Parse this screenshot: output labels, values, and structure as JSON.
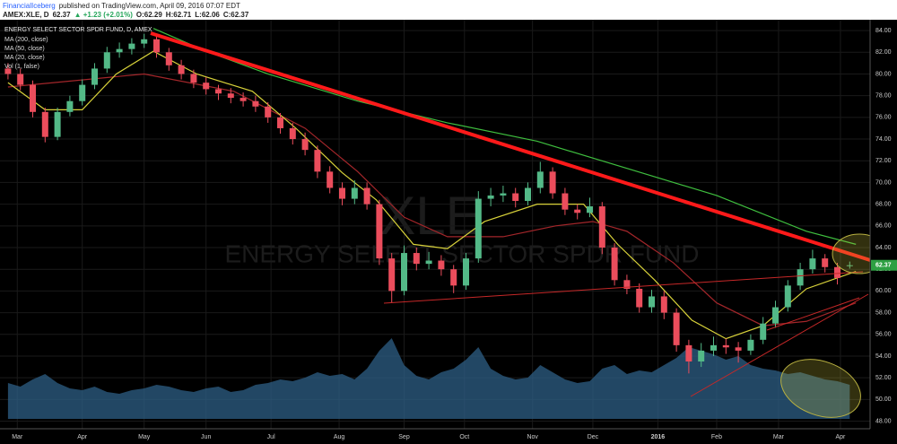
{
  "header": {
    "author": "FinancialIceberg",
    "published": "published on TradingView.com, April 09, 2016 07:07 EDT",
    "symbol": "AMEX:XLE, D",
    "last": "62.37",
    "change": "▲ +1.23 (+2.01%)",
    "open": "O:62.29",
    "high": "H:62.71",
    "low": "L:62.06",
    "close": "C:62.37"
  },
  "watermark": {
    "symbol": "XLE",
    "name": "ENERGY SELECT SECTOR SPDR FUND"
  },
  "chart_data": {
    "type": "candlestick",
    "title": "ENERGY SELECT SECTOR SPDR FUND, D, AMEX",
    "volume_name": "Vol (1, false)",
    "up_color": "#53b987",
    "down_color": "#eb4d5c",
    "volume_color": "#2e5f86",
    "xlim": [
      0,
      280
    ],
    "ylim": [
      47.3,
      85
    ],
    "vlim": [
      0,
      60
    ],
    "grid": true,
    "xticks": [
      {
        "value": 5,
        "label": "Mar"
      },
      {
        "value": 26,
        "label": "Apr"
      },
      {
        "value": 46,
        "label": "May"
      },
      {
        "value": 66,
        "label": "Jun"
      },
      {
        "value": 87,
        "label": "Jul"
      },
      {
        "value": 109,
        "label": "Aug"
      },
      {
        "value": 130,
        "label": "Sep"
      },
      {
        "value": 149.5,
        "label": "Oct"
      },
      {
        "value": 171.5,
        "label": "Nov"
      },
      {
        "value": 191,
        "label": "Dec"
      },
      {
        "value": 212,
        "label": "2016"
      },
      {
        "value": 231,
        "label": "Feb"
      },
      {
        "value": 251,
        "label": "Mar"
      },
      {
        "value": 271,
        "label": "Apr"
      }
    ],
    "yticks": [
      {
        "value": 48,
        "label": "48.00"
      },
      {
        "value": 50,
        "label": "50.00"
      },
      {
        "value": 52,
        "label": "52.00"
      },
      {
        "value": 54,
        "label": "54.00"
      },
      {
        "value": 56,
        "label": "56.00"
      },
      {
        "value": 58,
        "label": "58.00"
      },
      {
        "value": 60,
        "label": "60.00"
      },
      {
        "value": 62,
        "label": "62.00"
      },
      {
        "value": 64,
        "label": "64.00"
      },
      {
        "value": 66,
        "label": "66.00"
      },
      {
        "value": 68,
        "label": "68.00"
      },
      {
        "value": 70,
        "label": "70.00"
      },
      {
        "value": 72,
        "label": "72.00"
      },
      {
        "value": 74,
        "label": "74.00"
      },
      {
        "value": 76,
        "label": "76.00"
      },
      {
        "value": 78,
        "label": "78.00"
      },
      {
        "value": 80,
        "label": "80.00"
      },
      {
        "value": 82,
        "label": "82.00"
      },
      {
        "value": 84,
        "label": "84.00"
      }
    ],
    "candles": [
      [
        2,
        80.5,
        81,
        79.5,
        80
      ],
      [
        6,
        80,
        80.5,
        78.5,
        79
      ],
      [
        10,
        79,
        79.4,
        76,
        76.5
      ],
      [
        14,
        76.5,
        76.9,
        73.7,
        74.2
      ],
      [
        18,
        74.2,
        76.9,
        73.9,
        76.5
      ],
      [
        22,
        76.5,
        78,
        76.1,
        77.5
      ],
      [
        26,
        77.5,
        79.5,
        77.1,
        79
      ],
      [
        30,
        79,
        81,
        78.6,
        80.5
      ],
      [
        34,
        80.5,
        82.5,
        80.1,
        82
      ],
      [
        38,
        82,
        82.9,
        81.5,
        82.3
      ],
      [
        42,
        82.3,
        83.3,
        81.8,
        82.8
      ],
      [
        46,
        82.8,
        83.7,
        82.4,
        83.2
      ],
      [
        50,
        83.2,
        83.6,
        81.5,
        82
      ],
      [
        54,
        82,
        82.4,
        80.3,
        80.8
      ],
      [
        58,
        80.8,
        81.3,
        79.5,
        80
      ],
      [
        62,
        80,
        80.4,
        78.7,
        79.2
      ],
      [
        66,
        79.2,
        79.7,
        78.1,
        78.6
      ],
      [
        70,
        78.6,
        79,
        77.6,
        78.2
      ],
      [
        74,
        78.2,
        78.7,
        77.3,
        77.8
      ],
      [
        78,
        77.8,
        78.3,
        77,
        77.5
      ],
      [
        82,
        77.5,
        78,
        76.5,
        77
      ],
      [
        86,
        77,
        77.4,
        75.5,
        76
      ],
      [
        90,
        76,
        76.4,
        74.5,
        75
      ],
      [
        94,
        75,
        75.5,
        73.5,
        74
      ],
      [
        98,
        74,
        74.6,
        72.5,
        73
      ],
      [
        102,
        73,
        73.4,
        70.4,
        71
      ],
      [
        106,
        71,
        71.5,
        69,
        69.5
      ],
      [
        110,
        69.5,
        70,
        67.9,
        68.5
      ],
      [
        114,
        68.5,
        70.2,
        68,
        69.5
      ],
      [
        118,
        69.5,
        70,
        67.5,
        68
      ],
      [
        122,
        68,
        68.4,
        62.4,
        63
      ],
      [
        126,
        63,
        63.5,
        58.9,
        60
      ],
      [
        130,
        60,
        64.2,
        59.6,
        63.5
      ],
      [
        134,
        63.5,
        64,
        61.9,
        62.5
      ],
      [
        138,
        62.5,
        63.6,
        62,
        62.8
      ],
      [
        142,
        62.8,
        63.3,
        61.4,
        62
      ],
      [
        146,
        62,
        62.4,
        59.8,
        60.5
      ],
      [
        150,
        60.5,
        63.5,
        60.1,
        63
      ],
      [
        154,
        63,
        69.2,
        62.6,
        68.5
      ],
      [
        158,
        68.5,
        69.5,
        67.8,
        68.8
      ],
      [
        162,
        68.8,
        69.7,
        68.2,
        69
      ],
      [
        166,
        69,
        69.5,
        67.7,
        68.3
      ],
      [
        170,
        68.3,
        70,
        67.9,
        69.5
      ],
      [
        174,
        69.5,
        71.9,
        69,
        71
      ],
      [
        178,
        71,
        71.4,
        68.5,
        69
      ],
      [
        182,
        69,
        69.5,
        67,
        67.5
      ],
      [
        186,
        67.5,
        68,
        66.6,
        67.2
      ],
      [
        190,
        67.2,
        68.6,
        66.8,
        67.8
      ],
      [
        194,
        67.8,
        68.2,
        63.4,
        64
      ],
      [
        198,
        64,
        64.4,
        60.5,
        61
      ],
      [
        202,
        61,
        61.5,
        59.7,
        60.2
      ],
      [
        206,
        60.2,
        60.7,
        58,
        58.5
      ],
      [
        210,
        58.5,
        60.1,
        58,
        59.5
      ],
      [
        214,
        59.5,
        60,
        57.4,
        58
      ],
      [
        218,
        58,
        58.4,
        54.4,
        55
      ],
      [
        222,
        55,
        55.5,
        52.4,
        53.5
      ],
      [
        226,
        53.5,
        55.2,
        53,
        54.5
      ],
      [
        230,
        54.5,
        55.8,
        54,
        55
      ],
      [
        234,
        55,
        55.6,
        54.2,
        54.8
      ],
      [
        238,
        54.8,
        55.3,
        53.4,
        54.5
      ],
      [
        242,
        54.5,
        56,
        54.1,
        55.5
      ],
      [
        246,
        55.5,
        57.6,
        55.1,
        57
      ],
      [
        250,
        57,
        59.1,
        56.6,
        58.5
      ],
      [
        254,
        58.5,
        61,
        58.1,
        60.5
      ],
      [
        258,
        60.5,
        62.6,
        60.1,
        62
      ],
      [
        262,
        62,
        63.8,
        61.6,
        63
      ],
      [
        266,
        63,
        63.4,
        61.7,
        62.2
      ],
      [
        270,
        62.2,
        62.6,
        60.6,
        61.2
      ],
      [
        274,
        62.29,
        62.71,
        62.06,
        62.37
      ]
    ],
    "volume": [
      20,
      18,
      22,
      25,
      20,
      17,
      16,
      18,
      15,
      14,
      16,
      17,
      19,
      18,
      16,
      15,
      17,
      18,
      15,
      16,
      19,
      20,
      22,
      21,
      23,
      26,
      24,
      25,
      22,
      28,
      38,
      45,
      30,
      24,
      22,
      26,
      28,
      33,
      40,
      28,
      24,
      22,
      23,
      30,
      26,
      22,
      20,
      21,
      28,
      30,
      25,
      27,
      26,
      30,
      34,
      40,
      38,
      36,
      33,
      35,
      30,
      28,
      27,
      25,
      26,
      24,
      22,
      21,
      19
    ],
    "series": [
      {
        "name": "MA (200, close)",
        "color": "#3fbf3f",
        "x": [
          49,
          66,
          86,
          115,
          144,
          173,
          202,
          231,
          260,
          276
        ],
        "values": [
          84.2,
          82.1,
          80,
          77.5,
          75.5,
          73.8,
          71.3,
          68.8,
          65.5,
          64.3
        ]
      },
      {
        "name": "MA (50, close)",
        "color": "#a3262a",
        "x": [
          2,
          46,
          75,
          98,
          115,
          130,
          144,
          162,
          179,
          191,
          202,
          217,
          231,
          246,
          260,
          276
        ],
        "values": [
          78.8,
          80,
          78.4,
          75,
          71,
          66.8,
          65,
          65,
          66,
          66.4,
          65.5,
          62.6,
          58.9,
          56.8,
          57.2,
          58.9
        ]
      },
      {
        "name": "MA (20, close)",
        "color": "#d8d23a",
        "x": [
          2,
          14,
          26,
          37,
          49,
          63,
          81,
          95,
          110,
          121,
          133,
          144,
          156,
          173,
          188,
          199,
          211,
          223,
          234,
          246,
          260,
          276
        ],
        "values": [
          79.2,
          76.7,
          76.7,
          80,
          82.1,
          80,
          78.4,
          75,
          70.9,
          68.4,
          64.3,
          63.9,
          66.4,
          68,
          68,
          64.3,
          61,
          57.3,
          55.6,
          56.8,
          60.2,
          61.8
        ]
      }
    ]
  }
}
